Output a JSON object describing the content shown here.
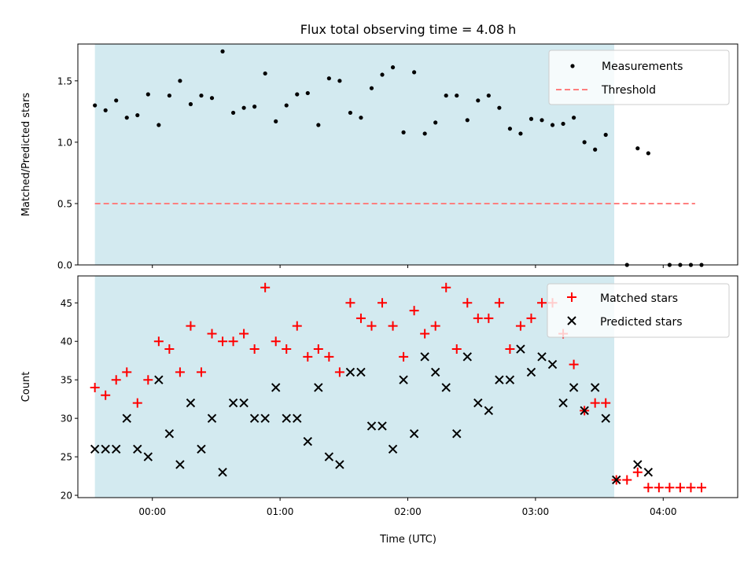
{
  "chart_data": [
    {
      "type": "scatter",
      "panel": "ratio",
      "title": "Flux total observing time = 4.08 h",
      "xlabel": "",
      "ylabel": "Matched/Predicted stars",
      "xlim": [
        -35,
        275
      ],
      "ylim": [
        0,
        1.8
      ],
      "yticks": [
        0.0,
        0.5,
        1.0,
        1.5
      ],
      "ytick_labels": [
        "0.0",
        "0.5",
        "1.0",
        "1.5"
      ],
      "shaded_x_range": [
        -27,
        217
      ],
      "shade_color": "#d3eaf0",
      "legend_position": "top-right",
      "legend": [
        "Measurements",
        "Threshold"
      ],
      "series": [
        {
          "name": "Measurements",
          "marker": "dot",
          "color": "#000000",
          "x": [
            -27,
            -22,
            -17,
            -12,
            -7,
            -2,
            3,
            8,
            13,
            18,
            23,
            28,
            33,
            38,
            43,
            48,
            53,
            58,
            63,
            68,
            73,
            78,
            83,
            88,
            93,
            98,
            103,
            108,
            113,
            118,
            123,
            128,
            133,
            138,
            143,
            148,
            153,
            158,
            163,
            168,
            173,
            178,
            183,
            188,
            193,
            198,
            203,
            208,
            213,
            223,
            228,
            233,
            243,
            248,
            253,
            258
          ],
          "y": [
            1.3,
            1.26,
            1.34,
            1.2,
            1.22,
            1.39,
            1.14,
            1.38,
            1.5,
            1.31,
            1.38,
            1.36,
            1.74,
            1.24,
            1.28,
            1.29,
            1.56,
            1.17,
            1.3,
            1.39,
            1.4,
            1.14,
            1.52,
            1.5,
            1.24,
            1.2,
            1.44,
            1.55,
            1.61,
            1.08,
            1.57,
            1.07,
            1.16,
            1.38,
            1.38,
            1.18,
            1.34,
            1.38,
            1.28,
            1.11,
            1.07,
            1.19,
            1.18,
            1.14,
            1.15,
            1.2,
            1.0,
            0.94,
            1.06,
            0.0,
            0.95,
            0.91,
            0.0,
            0.0,
            0.0,
            0.0
          ]
        },
        {
          "name": "Threshold",
          "style": "dashed",
          "color": "#ff7f7f",
          "x": [
            -27,
            255
          ],
          "y": [
            0.5,
            0.5
          ]
        }
      ]
    },
    {
      "type": "scatter",
      "panel": "counts",
      "title": "",
      "xlabel": "Time (UTC)",
      "ylabel": "Count",
      "xlim": [
        -35,
        275
      ],
      "ylim": [
        19.7,
        48.5
      ],
      "xticks": [
        0,
        60,
        120,
        180,
        240
      ],
      "xtick_labels": [
        "00:00",
        "01:00",
        "02:00",
        "03:00",
        "04:00"
      ],
      "yticks": [
        20,
        25,
        30,
        35,
        40,
        45
      ],
      "ytick_labels": [
        "20",
        "25",
        "30",
        "35",
        "40",
        "45"
      ],
      "shaded_x_range": [
        -27,
        217
      ],
      "shade_color": "#d3eaf0",
      "legend_position": "top-right",
      "legend": [
        "Matched stars",
        "Predicted stars"
      ],
      "series": [
        {
          "name": "Matched stars",
          "marker": "plus",
          "color": "#ff0000",
          "x": [
            -27,
            -22,
            -17,
            -12,
            -7,
            -2,
            3,
            8,
            13,
            18,
            23,
            28,
            33,
            38,
            43,
            48,
            53,
            58,
            63,
            68,
            73,
            78,
            83,
            88,
            93,
            98,
            103,
            108,
            113,
            118,
            123,
            128,
            133,
            138,
            143,
            148,
            153,
            158,
            163,
            168,
            173,
            178,
            183,
            188,
            193,
            198,
            203,
            208,
            213,
            218,
            223,
            228,
            233,
            238,
            243,
            248,
            253,
            258
          ],
          "y": [
            34,
            33,
            35,
            36,
            32,
            35,
            40,
            39,
            36,
            42,
            36,
            41,
            40,
            40,
            41,
            39,
            47,
            40,
            39,
            42,
            38,
            39,
            38,
            36,
            45,
            43,
            42,
            45,
            42,
            38,
            44,
            41,
            42,
            47,
            39,
            45,
            43,
            43,
            45,
            39,
            42,
            43,
            45,
            45,
            41,
            37,
            31,
            32,
            32,
            22,
            22,
            23,
            21,
            21,
            21,
            21,
            21,
            21
          ]
        },
        {
          "name": "Predicted stars",
          "marker": "x",
          "color": "#000000",
          "x": [
            -27,
            -22,
            -17,
            -12,
            -7,
            -2,
            3,
            8,
            13,
            18,
            23,
            28,
            33,
            38,
            43,
            48,
            53,
            58,
            63,
            68,
            73,
            78,
            83,
            88,
            93,
            98,
            103,
            108,
            113,
            118,
            123,
            128,
            133,
            138,
            143,
            148,
            153,
            158,
            163,
            168,
            173,
            178,
            183,
            188,
            193,
            198,
            203,
            208,
            213,
            218,
            228,
            233
          ],
          "y": [
            26,
            26,
            26,
            30,
            26,
            25,
            35,
            28,
            24,
            32,
            26,
            30,
            23,
            32,
            32,
            30,
            30,
            34,
            30,
            30,
            27,
            34,
            25,
            24,
            36,
            36,
            29,
            29,
            26,
            35,
            28,
            38,
            36,
            34,
            28,
            38,
            32,
            31,
            35,
            35,
            39,
            36,
            38,
            37,
            32,
            34,
            31,
            34,
            30,
            22,
            24,
            23
          ]
        }
      ]
    }
  ]
}
